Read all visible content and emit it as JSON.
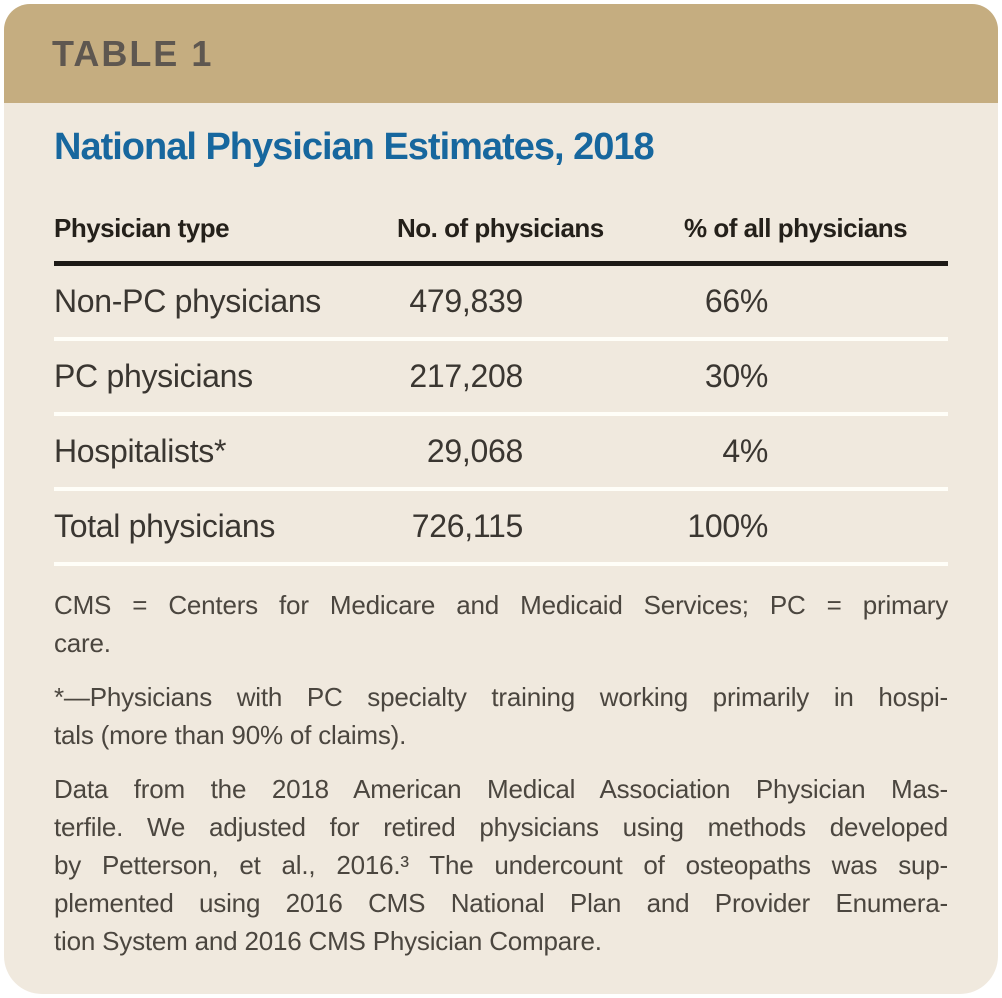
{
  "table_label": "TABLE 1",
  "title": "National Physician Estimates, 2018",
  "columns": [
    "Physician type",
    "No. of physicians",
    "% of all physicians"
  ],
  "rows": [
    {
      "type": "Non-PC physicians",
      "count": "479,839",
      "percent": "66%"
    },
    {
      "type": "PC physicians",
      "count": "217,208",
      "percent": "30%"
    },
    {
      "type": "Hospitalists*",
      "count": "29,068",
      "percent": "4%"
    },
    {
      "type": "Total physicians",
      "count": "726,115",
      "percent": "100%"
    }
  ],
  "footnotes": {
    "abbreviations": {
      "lines": [
        "CMS = Centers for Medicare and Medicaid Services; PC = primary",
        "care."
      ]
    },
    "asterisk": {
      "lines": [
        "*—Physicians with PC specialty training working primarily in hospi-",
        "tals (more than 90% of claims)."
      ]
    },
    "source": {
      "lines": [
        "Data from the 2018 American Medical Association Physician Mas-",
        "terfile. We adjusted for retired physicians using methods developed",
        "by Petterson, et al., 2016.³ The undercount of osteopaths was sup-",
        "plemented using 2016 CMS National Plan and Provider Enumera-",
        "tion System and 2016 CMS Physician Compare."
      ]
    }
  },
  "colors": {
    "banner_bg": "#c5ad80",
    "banner_text": "#5e5750",
    "card_bg": "#f0e9de",
    "title_blue": "#17679e",
    "rule_dark": "#1d1a16",
    "separator_white": "#fffef8",
    "cell_text": "#3a3631",
    "footnote_text": "#4b463f"
  },
  "chart_data": {
    "type": "table",
    "title": "National Physician Estimates, 2018",
    "columns": [
      "Physician type",
      "No. of physicians",
      "% of all physicians"
    ],
    "rows": [
      [
        "Non-PC physicians",
        479839,
        66
      ],
      [
        "PC physicians",
        217208,
        30
      ],
      [
        "Hospitalists*",
        29068,
        4
      ],
      [
        "Total physicians",
        726115,
        100
      ]
    ],
    "percent_unit": "%"
  }
}
